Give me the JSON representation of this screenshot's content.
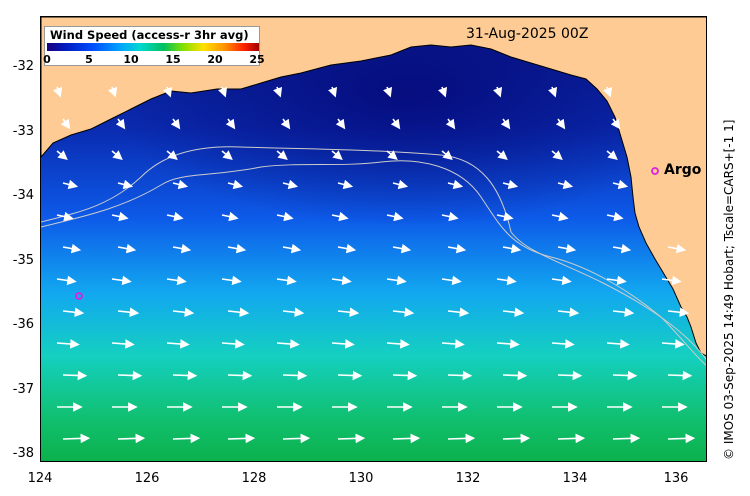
{
  "legend": {
    "title": "Wind Speed (access-r 3hr avg)",
    "ticks": [
      "0",
      "5",
      "10",
      "15",
      "20",
      "25"
    ]
  },
  "date": "31-Aug-2025 00Z",
  "argo_label": "Argo",
  "credit": "© IMOS 03-Sep-2025 14:49 Hobart; Tscale=CARS+[-1 1]",
  "axes": {
    "y_ticks": [
      "-32",
      "-33",
      "-34",
      "-35",
      "-36",
      "-37",
      "-38"
    ],
    "x_ticks": [
      "124",
      "126",
      "128",
      "130",
      "132",
      "134",
      "136"
    ]
  },
  "colors": {
    "land": "#fdcb93",
    "wind_low": "#0a1a8c",
    "wind_high": "#10b050",
    "arrow": "#ffffff",
    "argo_marker": "#e020e0"
  }
}
